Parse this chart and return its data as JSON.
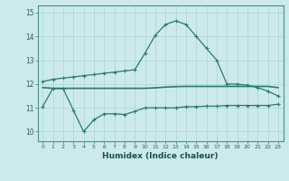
{
  "xlabel": "Humidex (Indice chaleur)",
  "bg_color": "#cceaea",
  "grid_color": "#b0d8d8",
  "line_color": "#2a7a6a",
  "xlim": [
    -0.5,
    23.5
  ],
  "ylim": [
    9.6,
    15.3
  ],
  "yticks": [
    10,
    11,
    12,
    13,
    14,
    15
  ],
  "xticks": [
    0,
    1,
    2,
    3,
    4,
    5,
    6,
    7,
    8,
    9,
    10,
    11,
    12,
    13,
    14,
    15,
    16,
    17,
    18,
    19,
    20,
    21,
    22,
    23
  ],
  "curve1_x": [
    0,
    1,
    2,
    3,
    4,
    5,
    6,
    7,
    8,
    9,
    10,
    11,
    12,
    13,
    14,
    15,
    16,
    17,
    18,
    19,
    20,
    21,
    22,
    23
  ],
  "curve1_y": [
    12.1,
    12.2,
    12.25,
    12.3,
    12.35,
    12.4,
    12.45,
    12.5,
    12.55,
    12.6,
    13.3,
    14.05,
    14.5,
    14.65,
    14.5,
    14.0,
    13.5,
    13.0,
    12.0,
    12.0,
    11.95,
    11.85,
    11.7,
    11.5
  ],
  "curve2_x": [
    0,
    1,
    2,
    3,
    4,
    5,
    6,
    7,
    8,
    9,
    10,
    11,
    12,
    13,
    14,
    15,
    16,
    17,
    18,
    19,
    20,
    21,
    22,
    23
  ],
  "curve2_y": [
    11.85,
    11.82,
    11.82,
    11.82,
    11.82,
    11.82,
    11.82,
    11.82,
    11.82,
    11.82,
    11.82,
    11.84,
    11.87,
    11.89,
    11.9,
    11.9,
    11.9,
    11.9,
    11.9,
    11.9,
    11.9,
    11.9,
    11.9,
    11.85
  ],
  "curve3_x": [
    0,
    1,
    2,
    3,
    4,
    5,
    6,
    7,
    8,
    9,
    10,
    11,
    12,
    13,
    14,
    15,
    16,
    17,
    18,
    19,
    20,
    21,
    22,
    23
  ],
  "curve3_y": [
    11.05,
    11.82,
    11.8,
    10.9,
    10.0,
    10.5,
    10.75,
    10.75,
    10.72,
    10.85,
    11.0,
    11.0,
    11.0,
    11.0,
    11.05,
    11.05,
    11.07,
    11.07,
    11.1,
    11.1,
    11.1,
    11.1,
    11.1,
    11.15
  ]
}
